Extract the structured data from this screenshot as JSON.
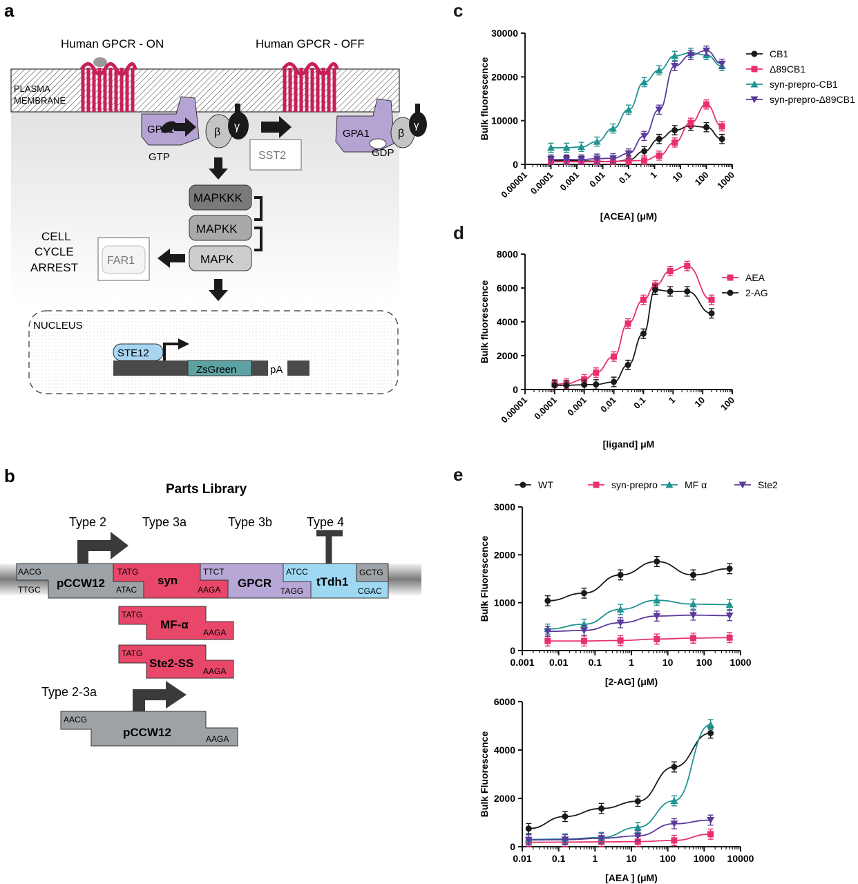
{
  "panels": {
    "a": {
      "letter": "a",
      "title_on": "Human GPCR - ON",
      "title_off": "Human GPCR - OFF",
      "membrane_label_1": "PLASMA",
      "membrane_label_2": "MEMBRANE",
      "gpa1": "GPA1",
      "gtp": "GTP",
      "gdp": "GDP",
      "beta": "β",
      "gamma": "γ",
      "sst2": "SST2",
      "mapkkk": "MAPKKK",
      "mapkk": "MAPKK",
      "mapk": "MAPK",
      "far1": "FAR1",
      "arrest_1": "CELL",
      "arrest_2": "CYCLE",
      "arrest_3": "ARREST",
      "nucleus": "NUCLEUS",
      "ste12": "STE12",
      "zsgreen": "ZsGreen",
      "pa": "pA"
    },
    "b": {
      "letter": "b",
      "title": "Parts Library",
      "type2": "Type 2",
      "type3a": "Type 3a",
      "type3b": "Type 3b",
      "type4": "Type 4",
      "type23a": "Type 2-3a",
      "pccw12": "pCCW12",
      "syn": "syn",
      "gpcr": "GPCR",
      "ttdh1": "tTdh1",
      "mfa": "MF-α",
      "ste2ss": "Ste2-SS",
      "oh": {
        "aacg": "AACG",
        "ttgc": "TTGC",
        "tatg": "TATG",
        "atac": "ATAC",
        "ttct": "TTCT",
        "aaga": "AAGA",
        "atcc": "ATCC",
        "tagg": "TAGG",
        "gctg": "GCTG",
        "cgac": "CGAC"
      }
    },
    "c": {
      "letter": "c"
    },
    "d": {
      "letter": "d"
    },
    "e": {
      "letter": "e"
    }
  },
  "colors": {
    "cb1": "#1a1a1a",
    "d89": "#e8306e",
    "synCB1": "#1f9490",
    "synD89": "#5b3a9b",
    "receptor": "#d9285f",
    "gpa1": "#b5a3d4",
    "parts_grey": "#9da2a6",
    "parts_pink": "#e8476a",
    "parts_purple": "#b7a7d6",
    "parts_blue": "#9fd8f2"
  },
  "chart_data": [
    {
      "id": "c",
      "type": "scatter",
      "xscale": "log",
      "xlabel": "[ACEA] (μM)",
      "ylabel": "Bulk fluorescence",
      "xlim": [
        1e-05,
        1000
      ],
      "ylim": [
        0,
        30000
      ],
      "xticks": [
        "0.00001",
        "0.0001",
        "0.001",
        "0.01",
        "0.1",
        "1",
        "10",
        "100",
        "1000"
      ],
      "yticks": [
        "0",
        "10000",
        "20000",
        "30000"
      ],
      "legend": "right",
      "series": [
        {
          "name": "CB1",
          "marker": "circle",
          "x": [
            0.0001,
            0.0004,
            0.0015,
            0.006,
            0.025,
            0.1,
            0.4,
            1.5,
            6,
            25,
            100,
            400
          ],
          "y": [
            800,
            900,
            800,
            700,
            600,
            1000,
            3000,
            5800,
            7800,
            8800,
            8500,
            5800
          ]
        },
        {
          "name": "Δ89CB1",
          "marker": "square",
          "x": [
            0.0001,
            0.0004,
            0.0015,
            0.006,
            0.025,
            0.1,
            0.4,
            1.5,
            6,
            25,
            100,
            400
          ],
          "y": [
            600,
            600,
            600,
            600,
            700,
            800,
            900,
            2000,
            5000,
            9500,
            13700,
            8700
          ]
        },
        {
          "name": "syn-prepro-CB1",
          "marker": "triangle-up",
          "x": [
            0.0001,
            0.0004,
            0.0015,
            0.006,
            0.025,
            0.1,
            0.4,
            1.5,
            6,
            25,
            100,
            400
          ],
          "y": [
            3800,
            3800,
            4000,
            5200,
            8200,
            12500,
            18800,
            21500,
            24800,
            25500,
            25000,
            22500
          ]
        },
        {
          "name": "syn-prepro-Δ89CB1",
          "marker": "triangle-down",
          "x": [
            0.0001,
            0.0004,
            0.0015,
            0.006,
            0.025,
            0.1,
            0.4,
            1.5,
            6,
            25,
            100,
            400
          ],
          "y": [
            1100,
            1100,
            1100,
            1300,
            1400,
            2500,
            6500,
            12500,
            22500,
            25000,
            26000,
            23000
          ]
        }
      ]
    },
    {
      "id": "d",
      "type": "scatter",
      "xscale": "log",
      "xlabel": "[ligand] μM",
      "ylabel": "Bulk fluorescence",
      "xlim": [
        1e-05,
        100
      ],
      "ylim": [
        0,
        8000
      ],
      "xticks": [
        "0.00001",
        "0.0001",
        "0.001",
        "0.01",
        "0.1",
        "1",
        "10",
        "100"
      ],
      "yticks": [
        "0",
        "2000",
        "4000",
        "6000",
        "8000"
      ],
      "legend": "right",
      "series": [
        {
          "name": "AEA",
          "marker": "square",
          "x": [
            0.0001,
            0.00025,
            0.001,
            0.0025,
            0.01,
            0.03,
            0.1,
            0.25,
            0.8,
            3,
            20
          ],
          "y": [
            300,
            350,
            600,
            1000,
            1950,
            3900,
            5300,
            6150,
            7000,
            7300,
            5300
          ]
        },
        {
          "name": "2-AG",
          "marker": "circle",
          "x": [
            0.0001,
            0.00025,
            0.001,
            0.0025,
            0.01,
            0.03,
            0.1,
            0.25,
            0.8,
            3,
            20
          ],
          "y": [
            250,
            250,
            280,
            300,
            450,
            1450,
            3300,
            5900,
            5800,
            5800,
            4500
          ]
        }
      ]
    },
    {
      "id": "e1",
      "type": "scatter",
      "xscale": "log",
      "xlabel": "[2-AG] (μM)",
      "ylabel": "Bulk Fluorescence",
      "xlim": [
        0.001,
        1000
      ],
      "ylim": [
        0,
        3000
      ],
      "xticks": [
        "0.001",
        "0.01",
        "0.1",
        "1",
        "10",
        "100",
        "1000"
      ],
      "yticks": [
        "0",
        "1000",
        "2000",
        "3000"
      ],
      "legend": "top",
      "series": [
        {
          "name": "WT",
          "marker": "circle",
          "x": [
            0.005,
            0.05,
            0.5,
            5,
            50,
            500
          ],
          "y": [
            1040,
            1200,
            1580,
            1860,
            1580,
            1710
          ]
        },
        {
          "name": "syn-prepro",
          "marker": "square",
          "x": [
            0.005,
            0.05,
            0.5,
            5,
            50,
            500
          ],
          "y": [
            200,
            200,
            210,
            240,
            260,
            270
          ]
        },
        {
          "name": "MF α",
          "marker": "triangle-up",
          "x": [
            0.005,
            0.05,
            0.5,
            5,
            50,
            500
          ],
          "y": [
            450,
            550,
            860,
            1050,
            970,
            960
          ]
        },
        {
          "name": "Ste2",
          "marker": "triangle-down",
          "x": [
            0.005,
            0.05,
            0.5,
            5,
            50,
            500
          ],
          "y": [
            400,
            420,
            580,
            720,
            740,
            730
          ]
        }
      ]
    },
    {
      "id": "e2",
      "type": "scatter",
      "xscale": "log",
      "xlabel": "[AEA ] (μM)",
      "ylabel": "Bulk Fluorescence",
      "xlim": [
        0.01,
        10000
      ],
      "ylim": [
        0,
        6000
      ],
      "xticks": [
        "0.01",
        "0.1",
        "1",
        "10",
        "100",
        "1000",
        "10000"
      ],
      "yticks": [
        "0",
        "2000",
        "4000",
        "6000"
      ],
      "series": [
        {
          "name": "WT",
          "marker": "circle",
          "x": [
            0.015,
            0.15,
            1.5,
            15,
            150,
            1500
          ],
          "y": [
            750,
            1250,
            1580,
            1880,
            3300,
            4700
          ]
        },
        {
          "name": "syn-prepro",
          "marker": "square",
          "x": [
            0.015,
            0.15,
            1.5,
            15,
            150,
            1500
          ],
          "y": [
            180,
            190,
            200,
            210,
            260,
            520
          ]
        },
        {
          "name": "MF α",
          "marker": "triangle-up",
          "x": [
            0.015,
            0.15,
            1.5,
            15,
            150,
            1500
          ],
          "y": [
            300,
            320,
            380,
            800,
            1900,
            5050
          ]
        },
        {
          "name": "Ste2",
          "marker": "triangle-down",
          "x": [
            0.015,
            0.15,
            1.5,
            15,
            150,
            1500
          ],
          "y": [
            280,
            290,
            350,
            450,
            950,
            1100
          ]
        }
      ]
    }
  ]
}
